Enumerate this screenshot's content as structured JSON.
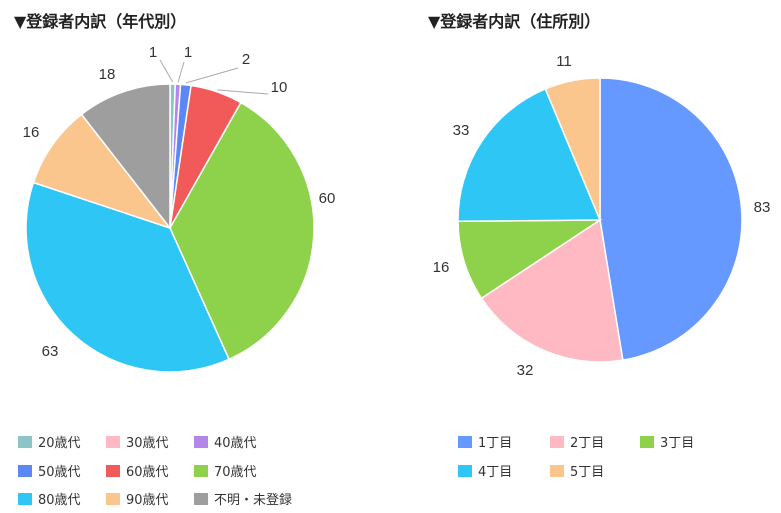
{
  "chart_data": [
    {
      "type": "pie",
      "title": "▼登録者内訳（年代別）",
      "legend_position": "bottom",
      "slices": [
        {
          "name": "20歳代",
          "value": 1,
          "color": "#8dc4c8"
        },
        {
          "name": "30歳代",
          "value": 0,
          "color": "#ffb9c2"
        },
        {
          "name": "40歳代",
          "value": 1,
          "color": "#b386e8"
        },
        {
          "name": "50歳代",
          "value": 2,
          "color": "#5b88f5"
        },
        {
          "name": "60歳代",
          "value": 10,
          "color": "#f25a5a"
        },
        {
          "name": "70歳代",
          "value": 60,
          "color": "#8ed14b"
        },
        {
          "name": "80歳代",
          "value": 63,
          "color": "#2ec7f5"
        },
        {
          "name": "90歳代",
          "value": 16,
          "color": "#fbc58e"
        },
        {
          "name": "不明・未登録",
          "value": 18,
          "color": "#9e9e9e"
        }
      ]
    },
    {
      "type": "pie",
      "title": "▼登録者内訳（住所別）",
      "legend_position": "bottom",
      "slices": [
        {
          "name": "1丁目",
          "value": 83,
          "color": "#6699ff"
        },
        {
          "name": "2丁目",
          "value": 32,
          "color": "#ffb9c2"
        },
        {
          "name": "3丁目",
          "value": 16,
          "color": "#8ed14b"
        },
        {
          "name": "4丁目",
          "value": 33,
          "color": "#2ec7f5"
        },
        {
          "name": "5丁目",
          "value": 11,
          "color": "#fbc58e"
        }
      ]
    }
  ]
}
